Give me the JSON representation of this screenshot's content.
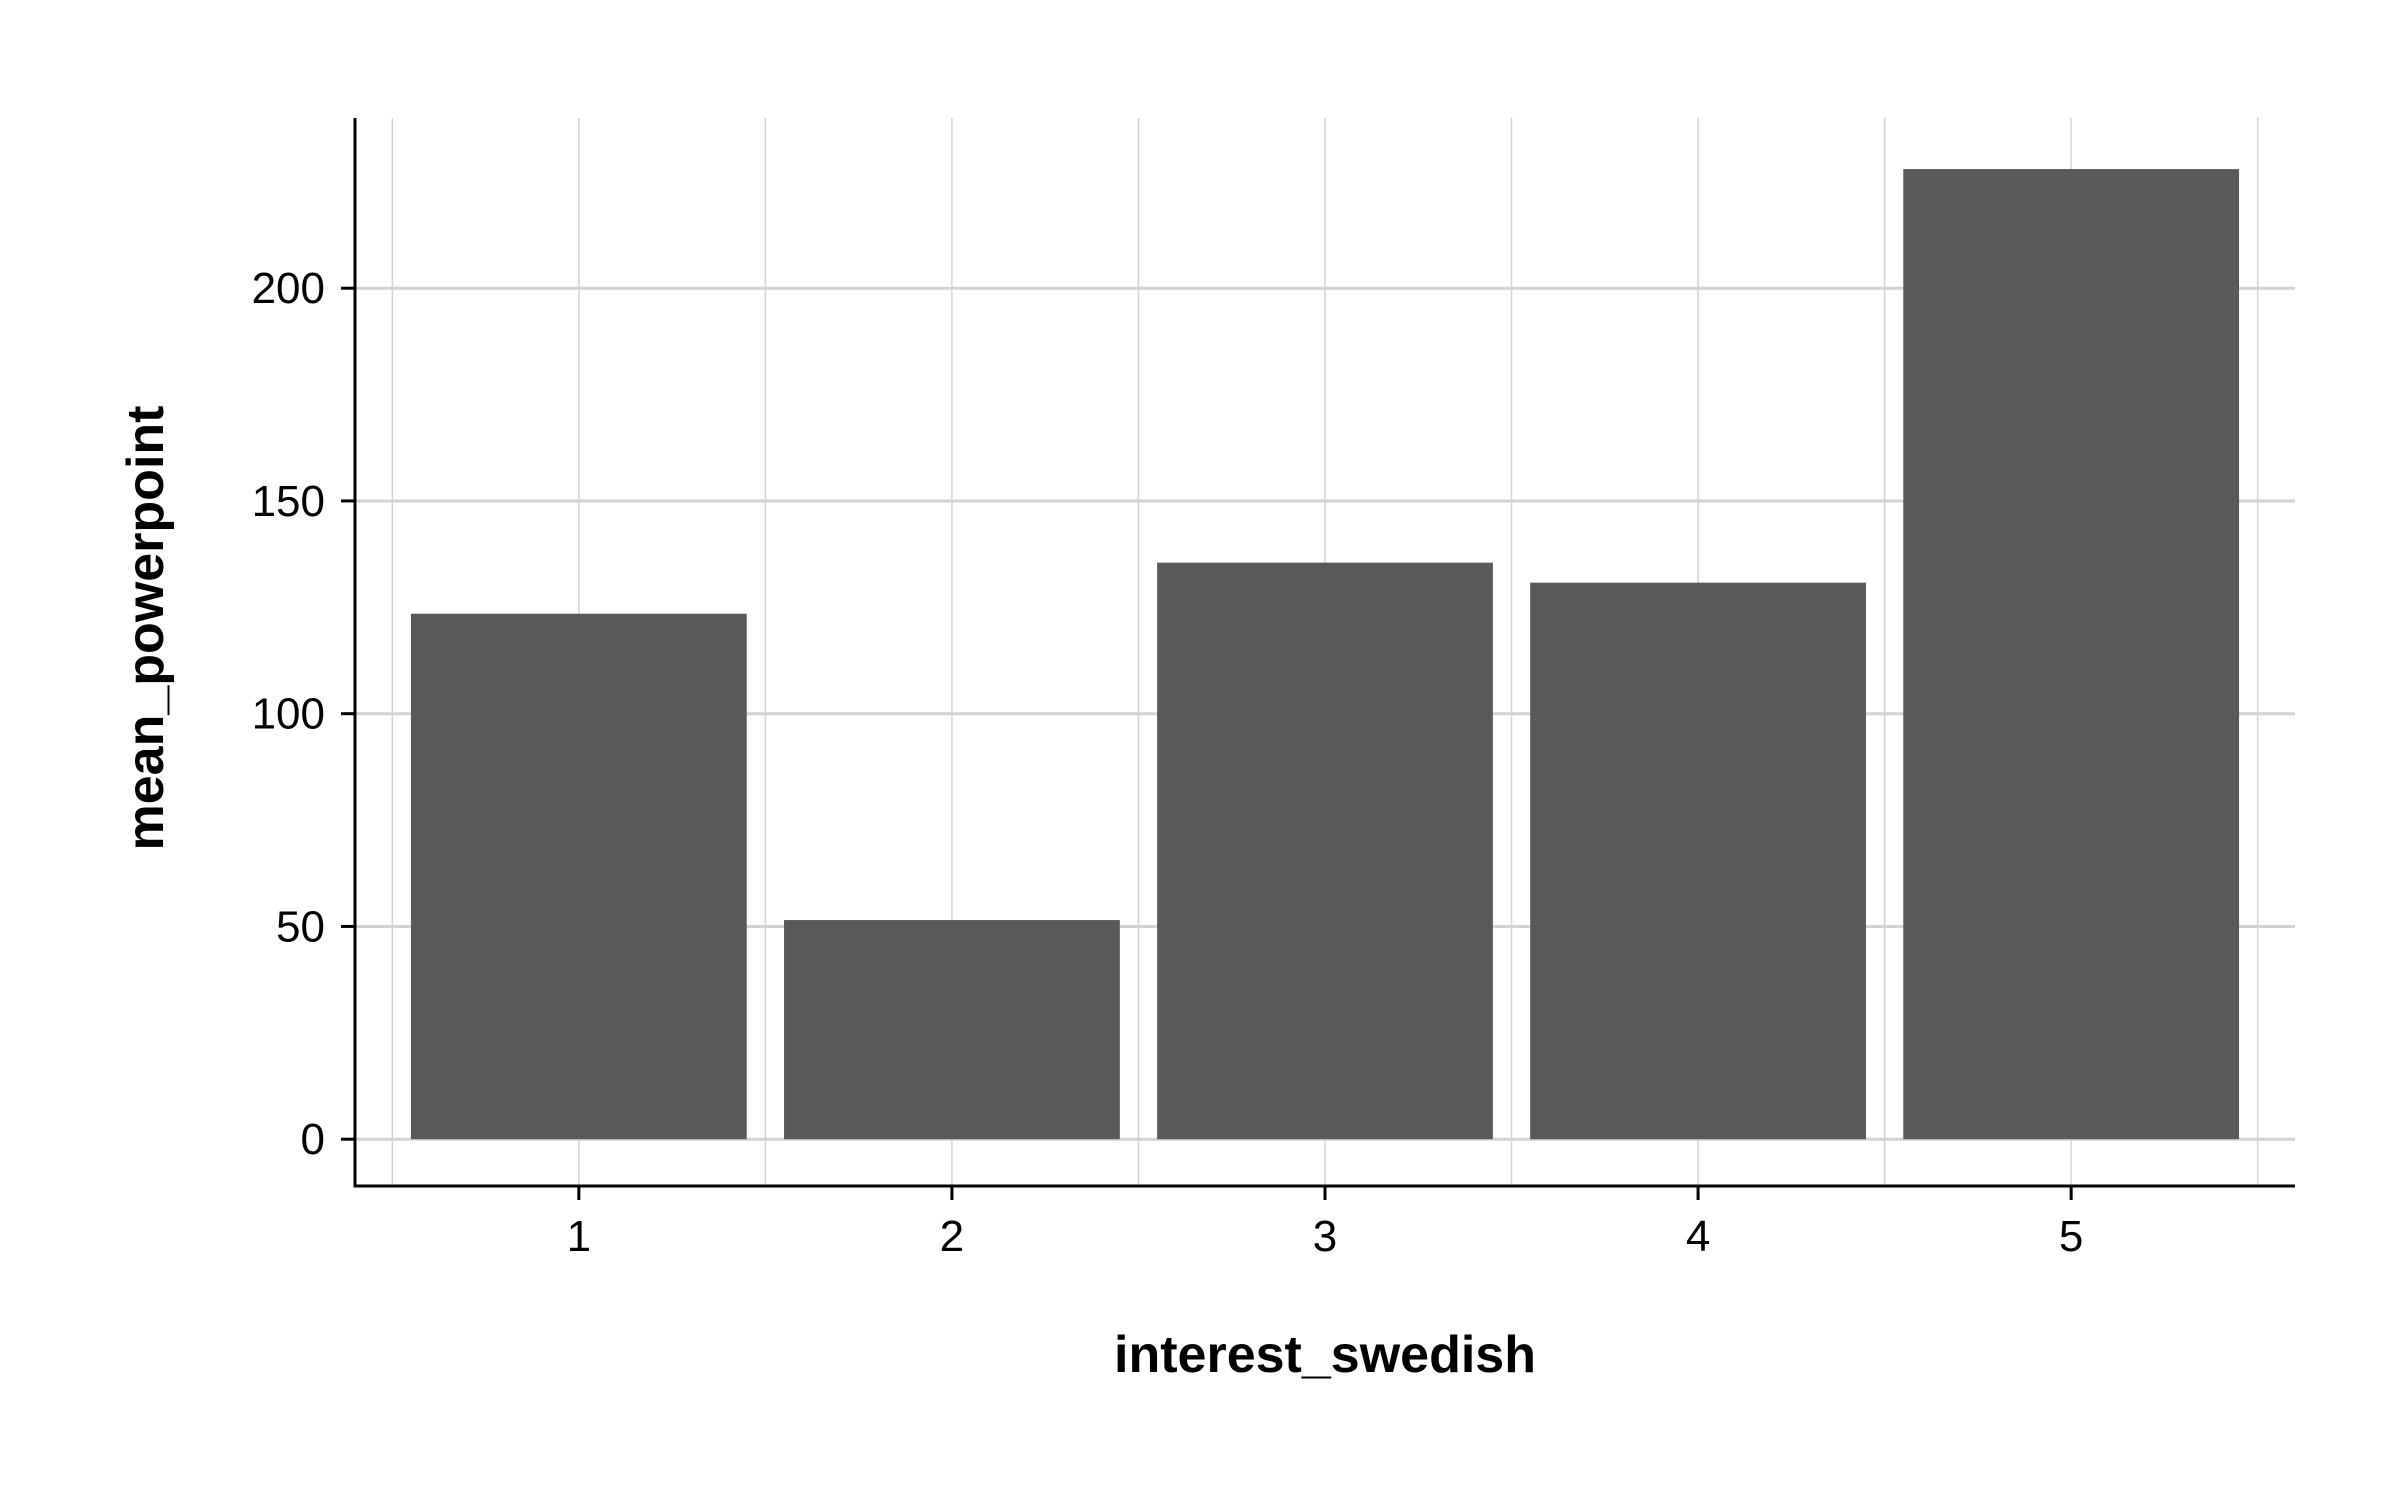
{
  "chart_data": {
    "type": "bar",
    "categories": [
      "1",
      "2",
      "3",
      "4",
      "5"
    ],
    "values": [
      123.5,
      51.5,
      135.5,
      130.8,
      228.0
    ],
    "title": "",
    "xlabel": "interest_swedish",
    "ylabel": "mean_powerpoint",
    "ylim": [
      -11,
      240
    ],
    "yticks": [
      0,
      50,
      100,
      150,
      200
    ],
    "grid": true,
    "colors": {
      "bar": "#595959",
      "grid": "#d3d3d3",
      "axis": "#000000"
    }
  }
}
